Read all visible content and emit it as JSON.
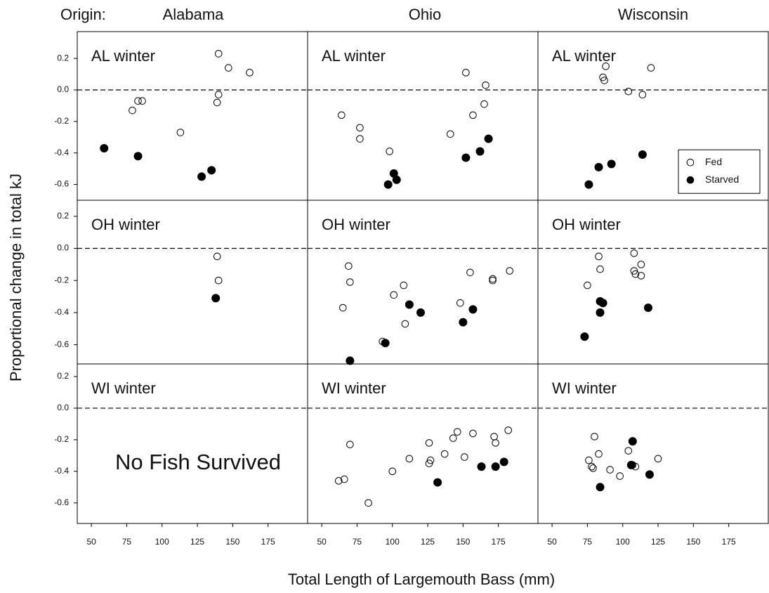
{
  "origin_label": "Origin:",
  "columns": [
    "Alabama",
    "Ohio",
    "Wisconsin"
  ],
  "y_label": "Proportional change in total kJ",
  "x_label": "Total Length of Largemouth Bass (mm)",
  "legend_series": [
    {
      "name": "Fed",
      "color": "#000000",
      "filled": false
    },
    {
      "name": "Starved",
      "color": "#000000",
      "filled": true
    }
  ],
  "chart_data": [
    {
      "type": "scatter",
      "title": "AL winter",
      "xlim": [
        40,
        203
      ],
      "ylim": [
        -0.7,
        0.37
      ],
      "yticks": [
        0.2,
        {
          "value": 0,
          "label": "0.0"
        },
        -0.2,
        -0.4,
        -0.6
      ],
      "series": [
        {
          "x": [
            140,
            147,
            162,
            140,
            139,
            79,
            83,
            86,
            113
          ],
          "y": [
            0.23,
            0.14,
            0.11,
            -0.03,
            -0.08,
            -0.13,
            -0.07,
            -0.07,
            -0.27
          ]
        },
        {
          "x": [
            59,
            83,
            128,
            135
          ],
          "y": [
            -0.37,
            -0.42,
            -0.55,
            -0.51
          ]
        }
      ]
    },
    {
      "type": "scatter",
      "title": "AL winter",
      "xlim": [
        40,
        203
      ],
      "ylim": [
        -0.7,
        0.37
      ],
      "series": [
        {
          "x": [
            64,
            77,
            77,
            98,
            141,
            152,
            157,
            165,
            166
          ],
          "y": [
            -0.16,
            -0.24,
            -0.31,
            -0.39,
            -0.28,
            0.11,
            -0.16,
            -0.09,
            0.03
          ]
        },
        {
          "x": [
            97,
            101,
            103,
            152,
            162,
            168
          ],
          "y": [
            -0.6,
            -0.53,
            -0.57,
            -0.43,
            -0.39,
            -0.31
          ]
        }
      ]
    },
    {
      "type": "scatter",
      "title": "AL winter",
      "xlim": [
        40,
        203
      ],
      "ylim": [
        -0.7,
        0.37
      ],
      "legend": "right",
      "series": [
        {
          "x": [
            86,
            87,
            88,
            104,
            114,
            120
          ],
          "y": [
            0.08,
            0.06,
            0.15,
            -0.01,
            -0.03,
            0.14
          ]
        },
        {
          "x": [
            76,
            83,
            92,
            114
          ],
          "y": [
            -0.6,
            -0.49,
            -0.47,
            -0.41
          ]
        }
      ]
    },
    {
      "type": "scatter",
      "title": "OH winter",
      "xlim": [
        40,
        203
      ],
      "ylim": [
        -0.72,
        0.3
      ],
      "yticks": [
        0.2,
        {
          "value": 0,
          "label": "0.0"
        },
        -0.2,
        -0.4,
        -0.6
      ],
      "series": [
        {
          "x": [
            139,
            140
          ],
          "y": [
            -0.05,
            -0.2
          ]
        },
        {
          "x": [
            138
          ],
          "y": [
            -0.31
          ]
        }
      ]
    },
    {
      "type": "scatter",
      "title": "OH winter",
      "xlim": [
        40,
        203
      ],
      "ylim": [
        -0.72,
        0.3
      ],
      "series": [
        {
          "x": [
            65,
            69,
            70,
            101,
            108,
            109,
            93,
            148,
            155,
            171,
            171,
            183
          ],
          "y": [
            -0.37,
            -0.11,
            -0.21,
            -0.29,
            -0.23,
            -0.47,
            -0.58,
            -0.34,
            -0.15,
            -0.19,
            -0.2,
            -0.14
          ]
        },
        {
          "x": [
            70,
            95,
            112,
            120,
            150,
            157
          ],
          "y": [
            -0.7,
            -0.59,
            -0.35,
            -0.4,
            -0.46,
            -0.38
          ]
        }
      ]
    },
    {
      "type": "scatter",
      "title": "OH winter",
      "xlim": [
        40,
        203
      ],
      "ylim": [
        -0.72,
        0.3
      ],
      "series": [
        {
          "x": [
            75,
            83,
            84,
            108,
            108,
            109,
            113,
            113
          ],
          "y": [
            -0.23,
            -0.05,
            -0.13,
            -0.14,
            -0.03,
            -0.16,
            -0.1,
            -0.17
          ]
        },
        {
          "x": [
            73,
            84,
            84,
            86,
            118
          ],
          "y": [
            -0.55,
            -0.33,
            -0.4,
            -0.34,
            -0.37
          ]
        }
      ]
    },
    {
      "type": "scatter",
      "title": "WI winter",
      "annotation": "No Fish Survived",
      "xlim": [
        40,
        203
      ],
      "ylim": [
        -0.73,
        0.28
      ],
      "yticks": [
        0.2,
        {
          "value": 0,
          "label": "0.0"
        },
        -0.2,
        -0.4,
        -0.6
      ],
      "xticks": [
        50,
        75,
        100,
        125,
        150,
        175
      ],
      "series": [
        {
          "x": [],
          "y": []
        },
        {
          "x": [],
          "y": []
        }
      ]
    },
    {
      "type": "scatter",
      "title": "WI winter",
      "xlim": [
        40,
        203
      ],
      "ylim": [
        -0.73,
        0.28
      ],
      "xticks": [
        50,
        75,
        100,
        125,
        150,
        175
      ],
      "series": [
        {
          "x": [
            62,
            66,
            70,
            83,
            100,
            112,
            126,
            126,
            127,
            137,
            143,
            146,
            151,
            157,
            172,
            173,
            182
          ],
          "y": [
            -0.46,
            -0.45,
            -0.23,
            -0.6,
            -0.4,
            -0.32,
            -0.22,
            -0.35,
            -0.33,
            -0.29,
            -0.19,
            -0.15,
            -0.31,
            -0.16,
            -0.18,
            -0.22,
            -0.14
          ]
        },
        {
          "x": [
            132,
            163,
            173,
            179
          ],
          "y": [
            -0.47,
            -0.37,
            -0.37,
            -0.34
          ]
        }
      ]
    },
    {
      "type": "scatter",
      "title": "WI winter",
      "xlim": [
        40,
        203
      ],
      "ylim": [
        -0.73,
        0.28
      ],
      "xticks": [
        50,
        75,
        100,
        125,
        150,
        175
      ],
      "series": [
        {
          "x": [
            76,
            78,
            79,
            80,
            83,
            91,
            98,
            104,
            107,
            109,
            125
          ],
          "y": [
            -0.33,
            -0.37,
            -0.38,
            -0.18,
            -0.29,
            -0.39,
            -0.43,
            -0.27,
            -0.36,
            -0.37,
            -0.32
          ]
        },
        {
          "x": [
            84,
            106,
            107,
            119
          ],
          "y": [
            -0.5,
            -0.36,
            -0.21,
            -0.42
          ]
        }
      ]
    }
  ]
}
